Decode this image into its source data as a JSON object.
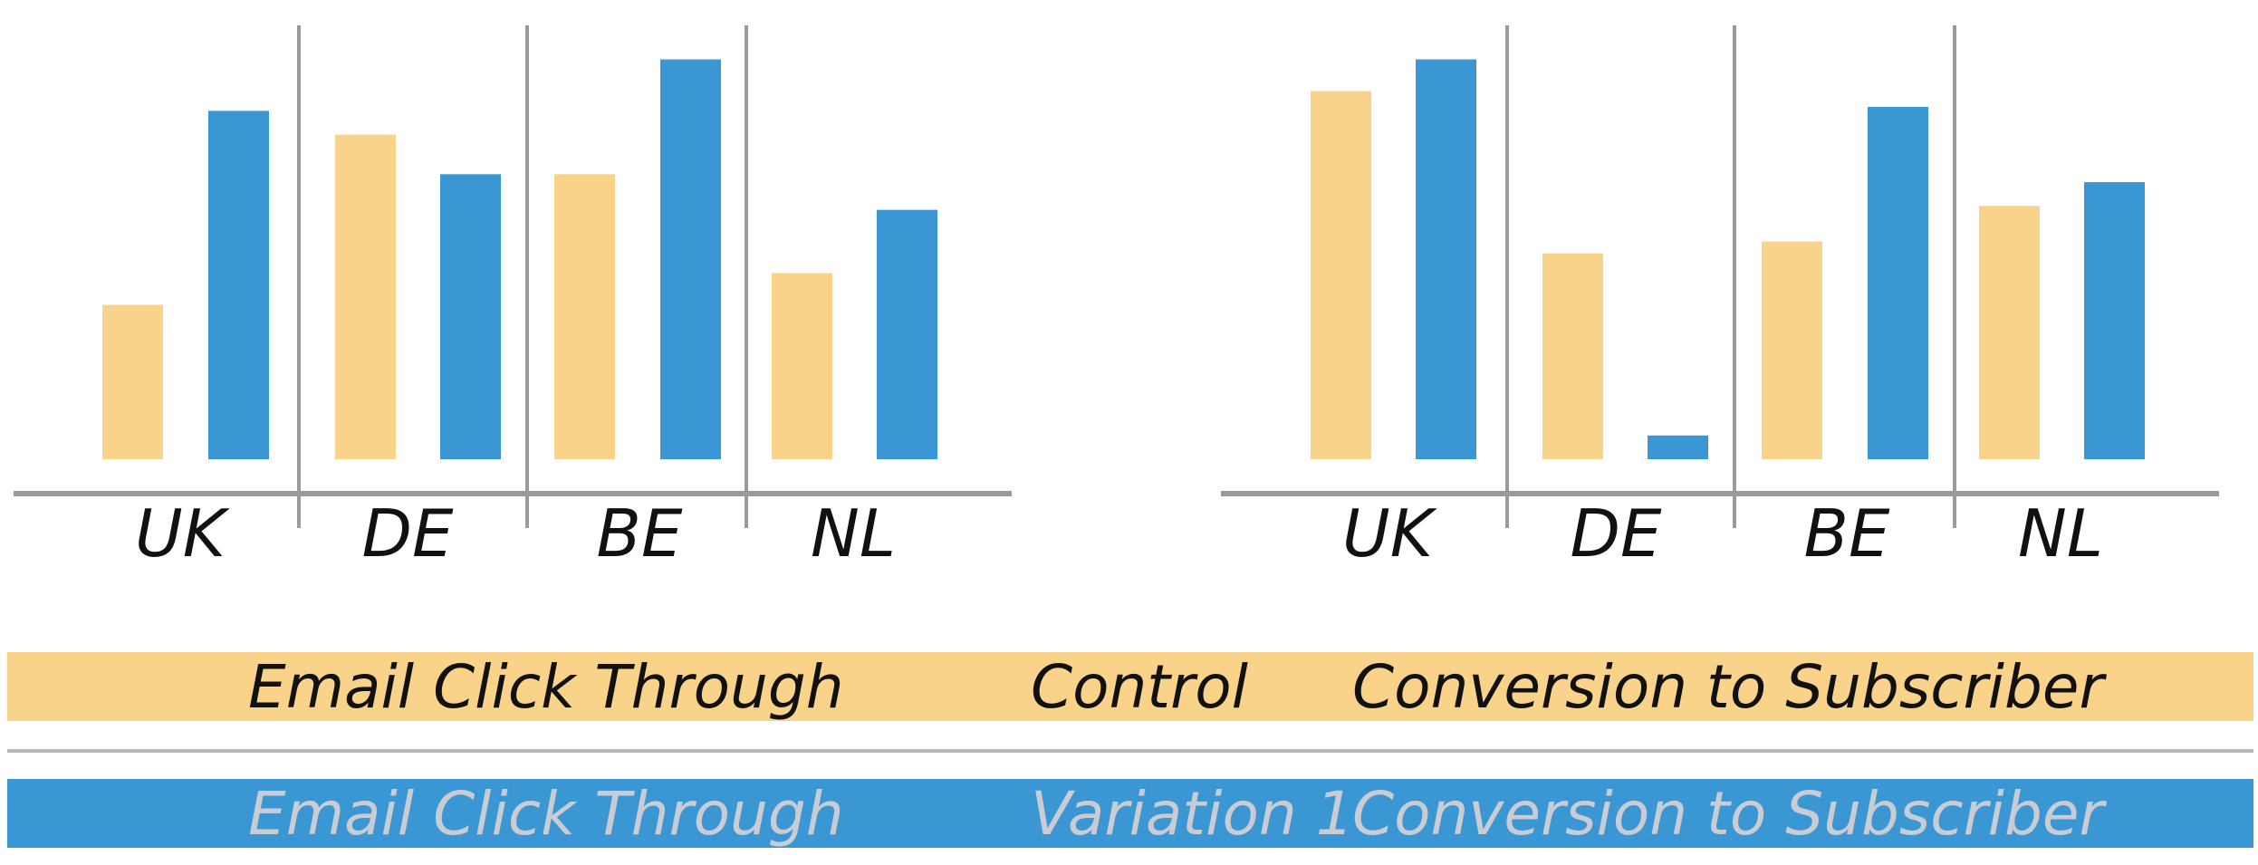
{
  "chart_data": [
    {
      "type": "bar",
      "categories": [
        "UK",
        "DE",
        "BE",
        "NL"
      ],
      "series": [
        {
          "name": "Email Click Through",
          "color": "#f9d38a",
          "values": [
            39,
            82,
            72,
            47
          ]
        },
        {
          "name": "Conversion to Subscriber",
          "color": "#3a97d4",
          "values": [
            88,
            72,
            101,
            63
          ]
        }
      ],
      "ylim": [
        0,
        108
      ],
      "grid": false,
      "title": "",
      "xlabel": "",
      "ylabel": ""
    },
    {
      "type": "bar",
      "categories": [
        "UK",
        "DE",
        "BE",
        "NL"
      ],
      "series": [
        {
          "name": "Email Click Through",
          "color": "#f9d38a",
          "values": [
            93,
            52,
            55,
            64
          ]
        },
        {
          "name": "Conversion to Subscriber",
          "color": "#3a97d4",
          "values": [
            101,
            6,
            89,
            70
          ]
        }
      ],
      "ylim": [
        0,
        108
      ],
      "grid": false,
      "title": "",
      "xlabel": "",
      "ylabel": ""
    }
  ],
  "legend": {
    "control": {
      "left": "Email Click Through",
      "name": "Control",
      "right": "Conversion to Subscriber",
      "color": "#f9d38a"
    },
    "variation": {
      "left": "Email Click Through",
      "name": "Variation 1",
      "right": "Conversion to Subscriber",
      "color": "#3a97d4"
    }
  }
}
